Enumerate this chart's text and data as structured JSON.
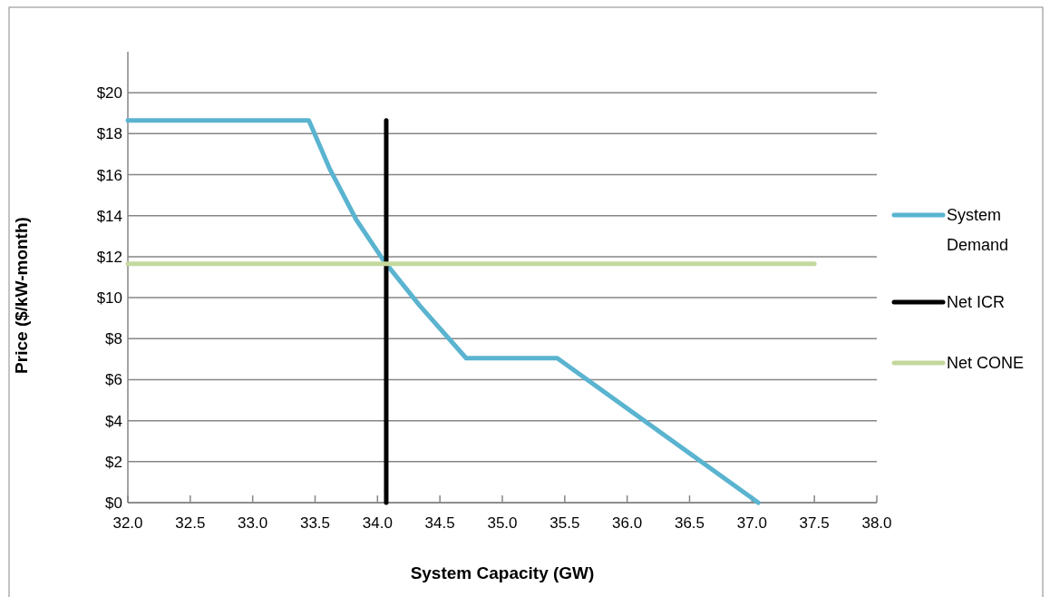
{
  "chart_data": {
    "type": "line",
    "xlabel": "System Capacity (GW)",
    "ylabel": "Price ($/kW-month)",
    "xlim": [
      32,
      38
    ],
    "xticks": [
      {
        "value": 32,
        "label": "32.0"
      },
      {
        "value": 32.5,
        "label": "32.5"
      },
      {
        "value": 33,
        "label": "33.0"
      },
      {
        "value": 33.5,
        "label": "33.5"
      },
      {
        "value": 34,
        "label": "34.0"
      },
      {
        "value": 34.5,
        "label": "34.5"
      },
      {
        "value": 35,
        "label": "35.0"
      },
      {
        "value": 35.5,
        "label": "35.5"
      },
      {
        "value": 36,
        "label": "36.0"
      },
      {
        "value": 36.5,
        "label": "36.5"
      },
      {
        "value": 37,
        "label": "37.0"
      },
      {
        "value": 37.5,
        "label": "37.5"
      },
      {
        "value": 38,
        "label": "38.0"
      }
    ],
    "ylim": [
      0,
      22
    ],
    "yticks": [
      {
        "value": 0,
        "label": "$0"
      },
      {
        "value": 2,
        "label": "$2"
      },
      {
        "value": 4,
        "label": "$4"
      },
      {
        "value": 6,
        "label": "$6"
      },
      {
        "value": 8,
        "label": "$8"
      },
      {
        "value": 10,
        "label": "$10"
      },
      {
        "value": 12,
        "label": "$12"
      },
      {
        "value": 14,
        "label": "$14"
      },
      {
        "value": 16,
        "label": "$16"
      },
      {
        "value": 18,
        "label": "$18"
      },
      {
        "value": 20,
        "label": "$20"
      }
    ],
    "grid": "y",
    "legend": "right",
    "marker": "none",
    "line_style": "solid",
    "series": [
      {
        "name": "System Demand",
        "color": "#5ab4d0",
        "x": [
          32,
          33.45,
          33.62,
          33.83,
          34.05,
          34.34,
          34.71,
          35.44,
          37.05
        ],
        "values": [
          18.65,
          18.65,
          16.25,
          13.8,
          11.8,
          9.6,
          7.05,
          7.05,
          0
        ]
      },
      {
        "name": "Net ICR",
        "color": "#000000",
        "x": [
          34.07,
          34.07
        ],
        "values": [
          0,
          18.65
        ]
      },
      {
        "name": "Net CONE",
        "color": "#c4d89e",
        "x": [
          32,
          37.5
        ],
        "values": [
          11.65,
          11.65
        ]
      }
    ]
  }
}
